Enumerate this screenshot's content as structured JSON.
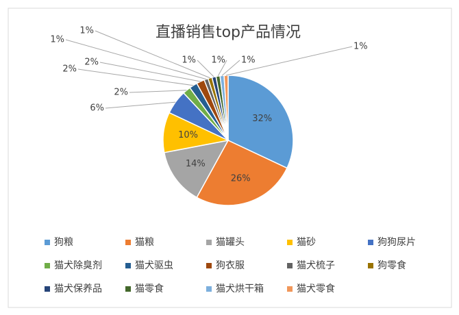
{
  "chart_data": {
    "type": "pie",
    "title": "直播销售top产品情况",
    "categories": [
      "狗粮",
      "猫粮",
      "猫罐头",
      "猫砂",
      "狗狗尿片",
      "猫犬除臭剂",
      "猫犬驱虫",
      "狗衣服",
      "猫犬梳子",
      "狗零食",
      "猫犬保养品",
      "猫零食",
      "猫犬烘干箱",
      "猫犬零食"
    ],
    "values": [
      32,
      26,
      14,
      10,
      6,
      2,
      2,
      2,
      1,
      1,
      1,
      1,
      1,
      1
    ],
    "value_labels": [
      "32%",
      "26%",
      "14%",
      "10%",
      "6%",
      "2%",
      "2%",
      "2%",
      "1%",
      "1%",
      "1%",
      "1%",
      "1%",
      "1%"
    ],
    "colors": [
      "#5b9bd5",
      "#ed7d31",
      "#a5a5a5",
      "#ffc000",
      "#4472c4",
      "#70ad47",
      "#255e91",
      "#9e480e",
      "#636363",
      "#997300",
      "#264478",
      "#43682b",
      "#7cafdd",
      "#f1975a"
    ],
    "legend": "bottom"
  }
}
